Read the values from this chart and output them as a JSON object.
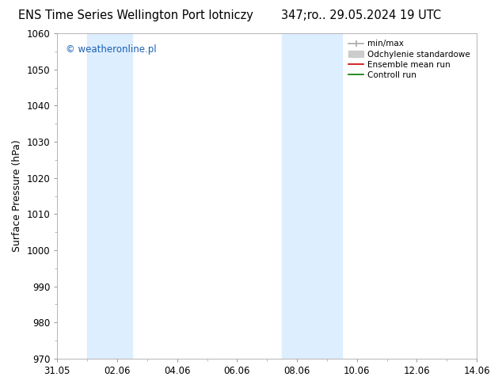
{
  "title_left": "ENS Time Series Wellington Port lotniczy",
  "title_right": "347;ro.. 29.05.2024 19 UTC",
  "ylabel": "Surface Pressure (hPa)",
  "ylim": [
    970,
    1060
  ],
  "yticks": [
    970,
    980,
    990,
    1000,
    1010,
    1020,
    1030,
    1040,
    1050,
    1060
  ],
  "xlim": [
    0,
    14
  ],
  "xtick_positions": [
    0,
    2,
    4,
    6,
    8,
    10,
    12,
    14
  ],
  "xtick_labels": [
    "31.05",
    "02.06",
    "04.06",
    "06.06",
    "08.06",
    "10.06",
    "12.06",
    "14.06"
  ],
  "shaded_regions": [
    {
      "xstart": 1.0,
      "xend": 2.5,
      "color": "#ddeeff"
    },
    {
      "xstart": 7.5,
      "xend": 9.5,
      "color": "#ddeeff"
    }
  ],
  "watermark": "© weatheronline.pl",
  "watermark_color": "#1a5fb4",
  "legend_items": [
    {
      "label": "min/max",
      "color": "#aaaaaa",
      "linestyle": "-",
      "linewidth": 1.2
    },
    {
      "label": "Odchylenie standardowe",
      "color": "#cccccc",
      "linestyle": "-",
      "linewidth": 5
    },
    {
      "label": "Ensemble mean run",
      "color": "#cc0000",
      "linestyle": "-",
      "linewidth": 1.2
    },
    {
      "label": "Controll run",
      "color": "#007700",
      "linestyle": "-",
      "linewidth": 1.2
    }
  ],
  "background_color": "#ffffff",
  "plot_bg_color": "#ffffff",
  "spine_color": "#aaaaaa",
  "title_fontsize": 10.5,
  "ylabel_fontsize": 9,
  "tick_fontsize": 8.5,
  "legend_fontsize": 7.5
}
